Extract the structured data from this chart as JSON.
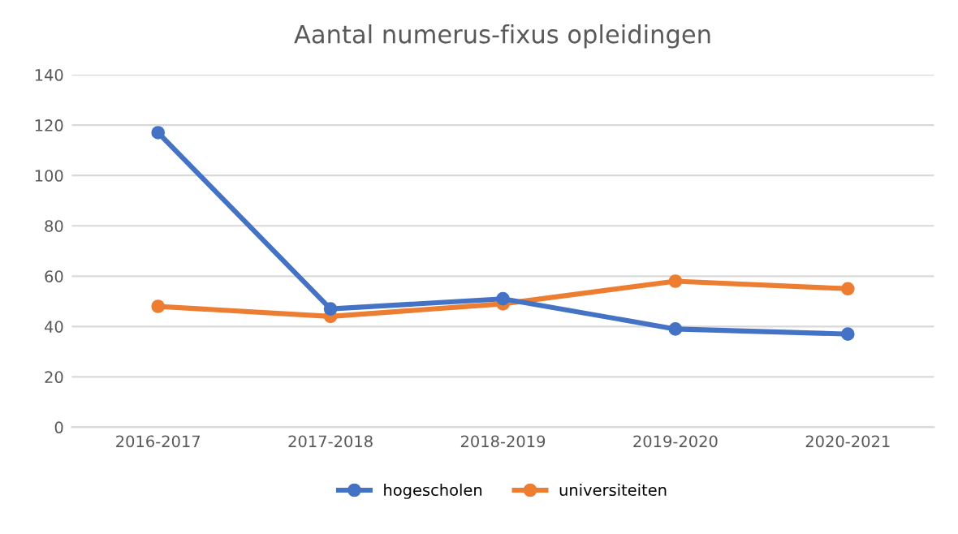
{
  "chart_data": {
    "type": "line",
    "title": "Aantal numerus-fixus opleidingen",
    "categories": [
      "2016-2017",
      "2017-2018",
      "2018-2019",
      "2019-2020",
      "2020-2021"
    ],
    "series": [
      {
        "name": "hogescholen",
        "color": "#4472c4",
        "values": [
          117,
          47,
          51,
          39,
          37
        ]
      },
      {
        "name": "universiteiten",
        "color": "#ed7d31",
        "values": [
          48,
          44,
          49,
          58,
          55
        ]
      }
    ],
    "ylim": [
      0,
      140
    ],
    "yticks": [
      0,
      20,
      40,
      60,
      80,
      100,
      120,
      140
    ],
    "grid": "y",
    "legend": "bottom",
    "marker": "circle",
    "line_style": "solid"
  }
}
